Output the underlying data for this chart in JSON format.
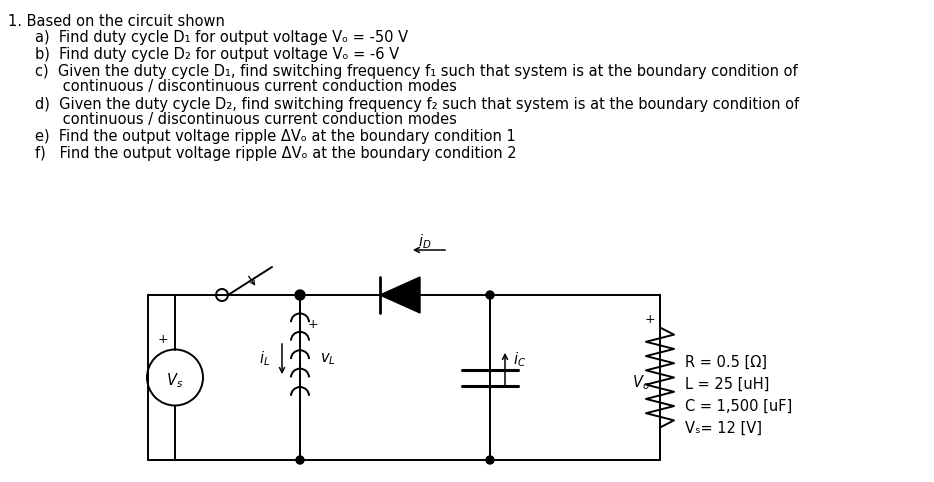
{
  "title": "1. Based on the circuit shown",
  "items_a": "a)  Find duty cycle D₁ for output voltage Vₒ = -50 V",
  "items_b": "b)  Find duty cycle D₂ for output voltage Vₒ = -6 V",
  "items_c1": "c)  Given the duty cycle D₁, find switching frequency f₁ such that system is at the boundary condition of",
  "items_c2": "      continuous / discontinuous current conduction modes",
  "items_d1": "d)  Given the duty cycle D₂, find switching frequency f₂ such that system is at the boundary condition of",
  "items_d2": "      continuous / discontinuous current conduction modes",
  "items_e": "e)  Find the output voltage ripple ΔVₒ at the boundary condition 1",
  "items_f": "f)   Find the output voltage ripple ΔVₒ at the boundary condition 2",
  "param1": "R = 0.5 [Ω]",
  "param2": "L = 25 [uH]",
  "param3": "C = 1,500 [uF]",
  "param4": "Vₛ= 12 [V]",
  "bg": "#ffffff",
  "tc": "#000000",
  "fs": 10.5
}
